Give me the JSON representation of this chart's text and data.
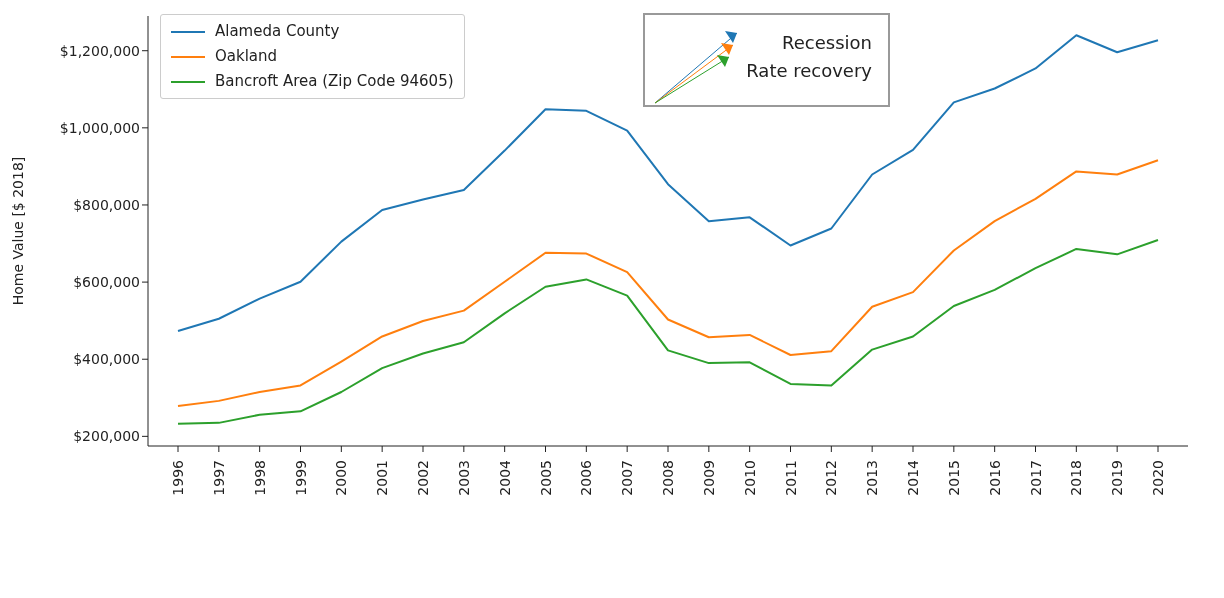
{
  "chart_data": {
    "type": "line",
    "ylabel": "Home Value [$ 2018]",
    "categories": [
      "1996",
      "1997",
      "1998",
      "1999",
      "2000",
      "2001",
      "2002",
      "2003",
      "2004",
      "2005",
      "2006",
      "2007",
      "2008",
      "2009",
      "2010",
      "2011",
      "2012",
      "2013",
      "2014",
      "2015",
      "2016",
      "2017",
      "2018",
      "2019",
      "2020"
    ],
    "series": [
      {
        "name": "Alameda County",
        "color": "#1f77b4",
        "values": [
          473000,
          505000,
          557000,
          601000,
          705000,
          787000,
          814000,
          839000,
          941000,
          1048000,
          1044000,
          993000,
          854000,
          758000,
          768000,
          695000,
          739000,
          879000,
          943000,
          1066000,
          1102000,
          1154000,
          1240000,
          1196000,
          1227000
        ]
      },
      {
        "name": "Oakland",
        "color": "#ff7f0e",
        "values": [
          279000,
          292000,
          315000,
          332000,
          394000,
          459000,
          499000,
          526000,
          601000,
          676000,
          674000,
          626000,
          503000,
          457000,
          463000,
          411000,
          421000,
          536000,
          574000,
          682000,
          758000,
          816000,
          887000,
          879000,
          916000
        ]
      },
      {
        "name": "Bancroft Area (Zip Code 94605)",
        "color": "#2ca02c",
        "values": [
          233000,
          235000,
          256000,
          265000,
          315000,
          377000,
          415000,
          444000,
          519000,
          588000,
          607000,
          565000,
          423000,
          390000,
          392000,
          336000,
          332000,
          425000,
          459000,
          538000,
          580000,
          636000,
          686000,
          672000,
          709000
        ]
      }
    ],
    "ylim": [
      175000,
      1290000
    ],
    "yticks": [
      {
        "value": 200000,
        "label": "$200,000"
      },
      {
        "value": 400000,
        "label": "$400,000"
      },
      {
        "value": 600000,
        "label": "$600,000"
      },
      {
        "value": 800000,
        "label": "$800,000"
      },
      {
        "value": 1000000,
        "label": "$1,000,000"
      },
      {
        "value": 1200000,
        "label": "$1,200,000"
      }
    ],
    "grid": false,
    "legend": "top left",
    "marker": "none",
    "line_style": "solid",
    "annotations": [
      "Recession",
      "Rate recovery"
    ]
  }
}
